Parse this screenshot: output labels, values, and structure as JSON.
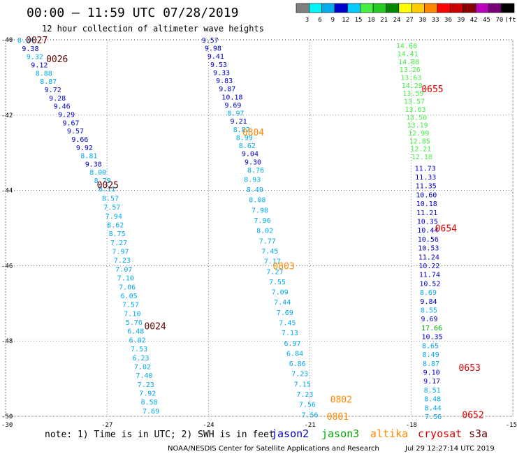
{
  "header": {
    "title": "00:00 – 11:59 UTC 07/28/2019",
    "subtitle": "12 hour collection of altimeter wave heights"
  },
  "colorbar": {
    "swatches": [
      "#7f7f7f",
      "#00f5f5",
      "#00aaee",
      "#0000cc",
      "#00ccff",
      "#44ee44",
      "#22cc22",
      "#008800",
      "#ffff00",
      "#ffcc00",
      "#ff8800",
      "#ff0000",
      "#cc0000",
      "#880000",
      "#bb00bb",
      "#770077",
      "#000000"
    ],
    "labels": [
      "3",
      "6",
      "9",
      "12",
      "15",
      "18",
      "21",
      "24",
      "27",
      "30",
      "33",
      "36",
      "39",
      "42",
      "45",
      "70",
      "(ft)"
    ]
  },
  "note": "note: 1) Time is in UTC; 2) SWH is in feet",
  "legend": [
    {
      "name": "jason2",
      "color": "#0000cc"
    },
    {
      "name": "jason3",
      "color": "#00aa00"
    },
    {
      "name": "altika",
      "color": "#ff8800"
    },
    {
      "name": "cryosat",
      "color": "#dd0000"
    },
    {
      "name": "s3a",
      "color": "#660000"
    }
  ],
  "credit": "NOAA/NESDIS Center for Satellite Applications and Research",
  "timestamp": "Jul 29 12:27:14 UTC 2019",
  "chart_data": {
    "type": "scatter",
    "title": "12 hour collection of altimeter wave heights",
    "xlabel": "",
    "ylabel": "",
    "xlim": [
      -30,
      -15
    ],
    "ylim": [
      -50,
      -40
    ],
    "x_ticks": [
      "-30",
      "-27",
      "-24",
      "-21",
      "-18",
      "-15"
    ],
    "y_ticks": [
      "-40",
      "-42",
      "-44",
      "-46",
      "-48",
      "-50"
    ],
    "grid": true,
    "pass_labels": [
      {
        "text": "0027",
        "x": -29.4,
        "y": -40.0,
        "color": "#660000"
      },
      {
        "text": "0026",
        "x": -28.8,
        "y": -40.5,
        "color": "#660000"
      },
      {
        "text": "0025",
        "x": -27.3,
        "y": -43.85,
        "color": "#660000"
      },
      {
        "text": "0024",
        "x": -25.9,
        "y": -47.6,
        "color": "#660000"
      },
      {
        "text": "0804",
        "x": -23.0,
        "y": -42.45,
        "color": "#ff8800"
      },
      {
        "text": "0803",
        "x": -22.1,
        "y": -46.0,
        "color": "#ff8800"
      },
      {
        "text": "0802",
        "x": -20.4,
        "y": -49.55,
        "color": "#ff8800"
      },
      {
        "text": "0801",
        "x": -20.5,
        "y": -50.0,
        "color": "#ff8800"
      },
      {
        "text": "0655",
        "x": -17.7,
        "y": -41.3,
        "color": "#dd0000"
      },
      {
        "text": "0654",
        "x": -17.3,
        "y": -45.0,
        "color": "#dd0000"
      },
      {
        "text": "0653",
        "x": -16.6,
        "y": -48.7,
        "color": "#dd0000"
      },
      {
        "text": "0652",
        "x": -16.5,
        "y": -49.95,
        "color": "#dd0000"
      }
    ],
    "series": [
      {
        "name": "s3a",
        "color": "#0000cc",
        "x_start": -29.65,
        "x_end": -27.25,
        "y_start": -40.0,
        "y_end": -43.95,
        "values": [
          "8.84",
          "9.38",
          "9.32",
          "9.12",
          "8.88",
          "8.87",
          "9.72",
          "9.28",
          "9.46",
          "9.29",
          "9.67",
          "9.57",
          "9.66",
          "9.92",
          "8.81",
          "9.38",
          "8.00",
          "8.79",
          "8.11"
        ],
        "colors": [
          "#00aaee",
          "#0000cc",
          "#00aaee",
          "#0000cc",
          "#00aaee",
          "#00aaee",
          "#0000cc",
          "#0000cc",
          "#0000cc",
          "#0000cc",
          "#0000cc",
          "#0000cc",
          "#0000cc",
          "#0000cc",
          "#00aaee",
          "#0000cc",
          "#00aaee",
          "#00aaee",
          "#00aaee"
        ]
      },
      {
        "name": "s3a",
        "color": "#00aaee",
        "x_start": -27.15,
        "x_end": -25.95,
        "y_start": -44.2,
        "y_end": -49.85,
        "values": [
          "8.57",
          "7.57",
          "7.94",
          "8.62",
          "8.75",
          "7.27",
          "7.97",
          "7.23",
          "7.07",
          "7.10",
          "7.06",
          "6.05",
          "7.57",
          "7.10",
          "5.76",
          "6.48",
          "6.02",
          "7.53",
          "6.23",
          "7.02",
          "7.40",
          "7.23",
          "7.92",
          "8.58",
          "7.69"
        ]
      },
      {
        "name": "jason2",
        "color": "#0000cc",
        "x_start": -24.2,
        "x_end": -22.85,
        "y_start": -40.0,
        "y_end": -43.45,
        "values": [
          "9.57",
          "9.98",
          "9.41",
          "9.53",
          "9.33",
          "9.83",
          "9.87",
          "10.18",
          "9.69",
          "8.97",
          "9.21",
          "8.82",
          "8.99",
          "8.62",
          "9.04",
          "9.30",
          "8.76"
        ],
        "colors": [
          "#0000cc",
          "#0000cc",
          "#0000cc",
          "#0000cc",
          "#0000cc",
          "#0000cc",
          "#0000cc",
          "#0000cc",
          "#0000cc",
          "#00aaee",
          "#0000cc",
          "#00aaee",
          "#00aaee",
          "#00aaee",
          "#0000cc",
          "#0000cc",
          "#00aaee"
        ]
      },
      {
        "name": "jason2",
        "color": "#00aaee",
        "x_start": -22.95,
        "x_end": -21.25,
        "y_start": -43.7,
        "y_end": -49.95,
        "values": [
          "8.93",
          "8.49",
          "8.08",
          "7.98",
          "7.96",
          "8.02",
          "7.77",
          "7.45",
          "7.17",
          "7.27",
          "7.55",
          "7.09",
          "7.44",
          "7.69",
          "7.45",
          "7.13",
          "6.97",
          "6.84",
          "6.86",
          "7.23",
          "7.15",
          "7.23",
          "7.56",
          "7.56"
        ]
      },
      {
        "name": "jason3",
        "color": "#44ee44",
        "x_start": -18.45,
        "x_end": -18.0,
        "y_start": -40.15,
        "y_end": -43.1,
        "values": [
          "14.60",
          "14.41",
          "14.88",
          "13.26",
          "13.63",
          "14.29",
          "13.59",
          "13.57",
          "13.63",
          "13.50",
          "13.19",
          "12.99",
          "12.85",
          "12.21",
          "12.18"
        ]
      },
      {
        "name": "jason3",
        "color": "#0000cc",
        "x_start": -17.9,
        "x_end": -17.6,
        "y_start": -43.4,
        "y_end": -50.0,
        "values": [
          "11.73",
          "11.33",
          "11.35",
          "10.60",
          "10.18",
          "11.21",
          "10.35",
          "10.44",
          "10.56",
          "10.53",
          "11.24",
          "10.22",
          "11.74",
          "10.52",
          "8.69",
          "9.84",
          "8.55",
          "9.69",
          "17.66",
          "10.35",
          "8.65",
          "8.49",
          "8.87",
          "9.10",
          "9.17",
          "8.51",
          "8.48",
          "8.44",
          "7.56"
        ],
        "colors": [
          "#0000cc",
          "#0000cc",
          "#0000cc",
          "#0000cc",
          "#0000cc",
          "#0000cc",
          "#0000cc",
          "#0000cc",
          "#0000cc",
          "#0000cc",
          "#0000cc",
          "#0000cc",
          "#0000cc",
          "#0000cc",
          "#00aaee",
          "#0000cc",
          "#00aaee",
          "#0000cc",
          "#00aa00",
          "#0000cc",
          "#00aaee",
          "#00aaee",
          "#00aaee",
          "#0000cc",
          "#0000cc",
          "#00aaee",
          "#00aaee",
          "#00aaee",
          "#00aaee"
        ]
      }
    ]
  }
}
